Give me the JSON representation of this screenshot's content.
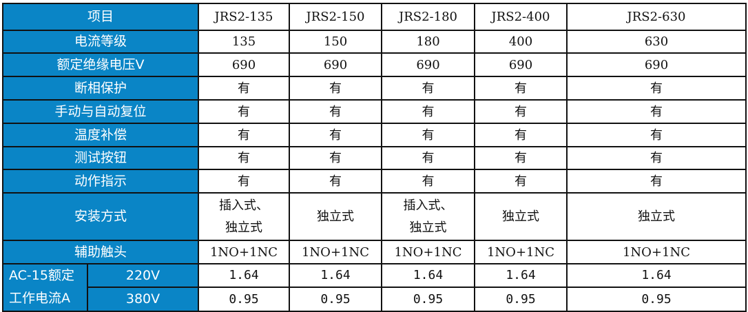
{
  "colors": {
    "header_bg": "#0a85c6",
    "header_text": "#ffffff",
    "border": "#111111"
  },
  "header": {
    "label": "项目",
    "models": [
      "JRS2-135",
      "JRS2-150",
      "JRS2-180",
      "JRS2-400",
      "JRS2-630"
    ]
  },
  "rows": [
    {
      "label": "电流等级",
      "values": [
        "135",
        "150",
        "180",
        "400",
        "630"
      ]
    },
    {
      "label": "额定绝缘电压V",
      "values": [
        "690",
        "690",
        "690",
        "690",
        "690"
      ]
    },
    {
      "label": "断相保护",
      "values": [
        "有",
        "有",
        "有",
        "有",
        "有"
      ]
    },
    {
      "label": "手动与自动复位",
      "values": [
        "有",
        "有",
        "有",
        "有",
        "有"
      ]
    },
    {
      "label": "温度补偿",
      "values": [
        "有",
        "有",
        "有",
        "有",
        "有"
      ]
    },
    {
      "label": "测试按钮",
      "values": [
        "有",
        "有",
        "有",
        "有",
        "有"
      ]
    },
    {
      "label": "动作指示",
      "values": [
        "有",
        "有",
        "有",
        "有",
        "有"
      ]
    },
    {
      "label": "安装方式",
      "values": [
        "插入式、独立式",
        "独立式",
        "插入式、独立式",
        "独立式",
        "独立式"
      ]
    },
    {
      "label": "辅助触头",
      "values": [
        "1NO+1NC",
        "1NO+1NC",
        "1NO+1NC",
        "1NO+1NC",
        "1NO+1NC"
      ]
    }
  ],
  "ac15": {
    "label": "AC-15额定工作电流A",
    "sub": [
      {
        "label": "220V",
        "values": [
          "1.64",
          "1.64",
          "1.64",
          "1.64",
          "1.64"
        ]
      },
      {
        "label": "380V",
        "values": [
          "0.95",
          "0.95",
          "0.95",
          "0.95",
          "0.95"
        ]
      }
    ]
  }
}
